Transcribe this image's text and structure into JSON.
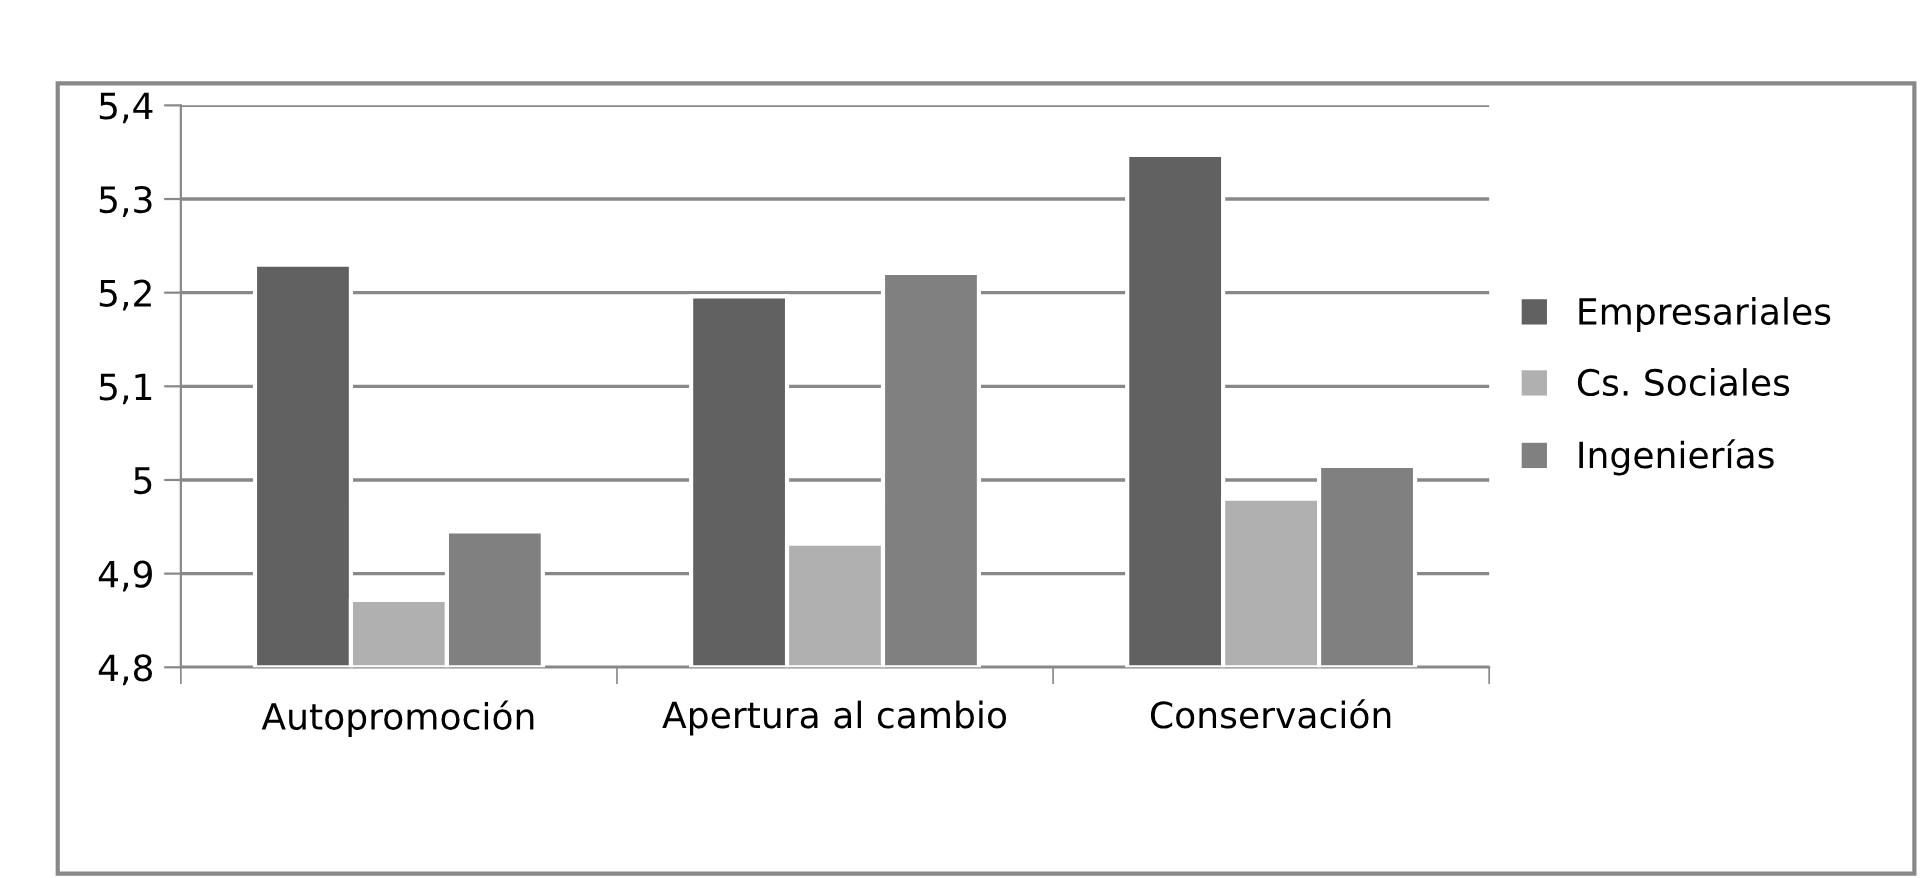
{
  "chart_data": {
    "type": "bar",
    "categories": [
      "Autopromoción",
      "Apertura al cambio",
      "Conservación"
    ],
    "series": [
      {
        "name": "Empresariales",
        "color": "#616161",
        "values": [
          5.23,
          5.196,
          5.347
        ]
      },
      {
        "name": "Cs. Sociales",
        "color": "#b0b0b0",
        "values": [
          4.872,
          4.932,
          4.98
        ]
      },
      {
        "name": "Ingenierías",
        "color": "#808080",
        "values": [
          4.945,
          5.221,
          5.015
        ]
      }
    ],
    "ylim": [
      4.8,
      5.4
    ],
    "yticks": [
      {
        "value": 4.8,
        "label": "4,8"
      },
      {
        "value": 4.9,
        "label": "4,9"
      },
      {
        "value": 5,
        "label": "5"
      },
      {
        "value": 5.1,
        "label": "5,1"
      },
      {
        "value": 5.2,
        "label": "5,2"
      },
      {
        "value": 5.3,
        "label": "5,3"
      },
      {
        "value": 5.4,
        "label": "5,4"
      }
    ],
    "grid": "y",
    "legend": "right"
  }
}
